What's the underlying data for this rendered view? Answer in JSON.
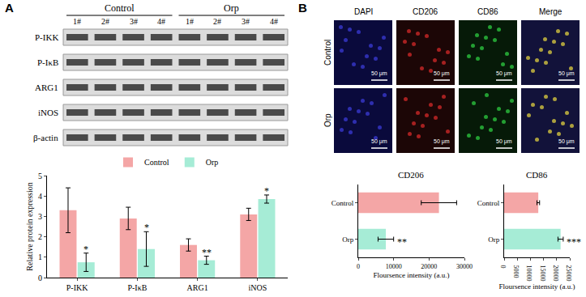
{
  "chart_data": [
    {
      "type": "bar",
      "ylabel": "Relative protein expression",
      "categories": [
        "P-IKK",
        "P-IκB",
        "ARG1",
        "iNOS"
      ],
      "series": [
        {
          "name": "Control",
          "color": "#f4a6a6",
          "values": [
            3.3,
            2.9,
            1.6,
            3.1
          ],
          "errors": [
            1.1,
            0.55,
            0.3,
            0.3
          ]
        },
        {
          "name": "Orp",
          "color": "#a6ecd6",
          "values": [
            0.75,
            1.4,
            0.85,
            3.85
          ],
          "errors": [
            0.45,
            0.85,
            0.2,
            0.2
          ]
        }
      ],
      "ylim": [
        0,
        5
      ],
      "yticks": [
        0,
        1,
        2,
        3,
        4,
        5
      ],
      "grid": false,
      "legend": "top",
      "annotations": [
        {
          "category": "P-IKK",
          "series": "Orp",
          "text": "*"
        },
        {
          "category": "P-IκB",
          "series": "Orp",
          "text": "*"
        },
        {
          "category": "ARG1",
          "series": "Orp",
          "text": "**"
        },
        {
          "category": "iNOS",
          "series": "Orp",
          "text": "*"
        }
      ]
    },
    {
      "type": "bar",
      "orientation": "horizontal",
      "title": "CD206",
      "xlabel": "Floursence intensity (a.u.)",
      "categories": [
        "Control",
        "Orp"
      ],
      "values": [
        22800,
        7800
      ],
      "errors": [
        5000,
        2200
      ],
      "colors": [
        "#f4a6a6",
        "#a6ecd6"
      ],
      "xlim": [
        0,
        30000
      ],
      "xticks": [
        0,
        10000,
        20000,
        30000
      ],
      "grid": false,
      "annotations": [
        {
          "category": "Orp",
          "text": "**"
        }
      ]
    },
    {
      "type": "bar",
      "orientation": "horizontal",
      "title": "CD86",
      "xlabel": "Floursence intensity (a.u.)",
      "categories": [
        "Control",
        "Orp"
      ],
      "values": [
        13000,
        21500
      ],
      "errors": [
        500,
        1000
      ],
      "colors": [
        "#f4a6a6",
        "#a6ecd6"
      ],
      "xlim": [
        0,
        25000
      ],
      "xticks": [
        0,
        5000,
        10000,
        15000,
        20000,
        25000
      ],
      "grid": false,
      "annotations": [
        {
          "category": "Orp",
          "text": "***"
        }
      ]
    }
  ],
  "figure": {
    "panels": [
      {
        "letter": "A",
        "blot": {
          "groups": [
            "Control",
            "Orp"
          ],
          "lanes": [
            "1#",
            "2#",
            "3#",
            "4#"
          ],
          "rows": [
            "P-IKK",
            "P-IκB",
            "ARG1",
            "iNOS",
            "β-actin"
          ]
        }
      },
      {
        "letter": "B",
        "images": {
          "columns": [
            "DAPI",
            "CD206",
            "CD86",
            "Merge"
          ],
          "rows": [
            "Control",
            "Orp"
          ],
          "scale_bar": "50 μm"
        }
      }
    ]
  }
}
